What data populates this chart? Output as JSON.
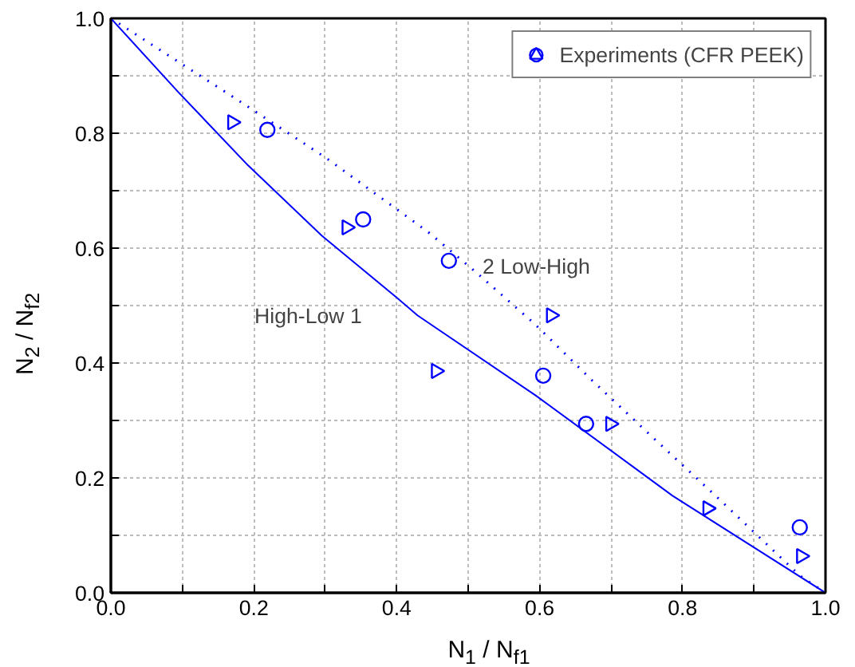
{
  "chart_data": {
    "type": "scatter",
    "xlabel": "N$_{1}$ / N$_{f1}$",
    "ylabel": "N$_{2}$ / N$_{f2}$",
    "xlim": [
      0,
      1
    ],
    "ylim": [
      0,
      1
    ],
    "xticks": [
      {
        "value": 0.0,
        "label": "0.0"
      },
      {
        "value": 0.1,
        "label": null
      },
      {
        "value": 0.2,
        "label": "0.2"
      },
      {
        "value": 0.3,
        "label": null
      },
      {
        "value": 0.4,
        "label": "0.4"
      },
      {
        "value": 0.5,
        "label": null
      },
      {
        "value": 0.6,
        "label": "0.6"
      },
      {
        "value": 0.7,
        "label": null
      },
      {
        "value": 0.8,
        "label": "0.8"
      },
      {
        "value": 0.9,
        "label": null
      },
      {
        "value": 1.0,
        "label": "1.0"
      }
    ],
    "yticks": [
      {
        "value": 0.0,
        "label": "0.0"
      },
      {
        "value": 0.1,
        "label": null
      },
      {
        "value": 0.2,
        "label": "0.2"
      },
      {
        "value": 0.3,
        "label": null
      },
      {
        "value": 0.4,
        "label": "0.4"
      },
      {
        "value": 0.5,
        "label": null
      },
      {
        "value": 0.6,
        "label": "0.6"
      },
      {
        "value": 0.7,
        "label": null
      },
      {
        "value": 0.8,
        "label": "0.8"
      },
      {
        "value": 0.9,
        "label": null
      },
      {
        "value": 1.0,
        "label": "1.0"
      }
    ],
    "grid": true,
    "legend": "top right",
    "series": [
      {
        "type": "line",
        "line_style": "solid",
        "color": "#0000ff",
        "x": [
          0,
          0.094,
          0.192,
          0.295,
          0.4,
          0.429,
          0.594,
          0.786,
          1.0
        ],
        "values": [
          1,
          0.872,
          0.744,
          0.622,
          0.514,
          0.483,
          0.344,
          0.169,
          0
        ]
      },
      {
        "type": "line",
        "line_style": "dotted",
        "color": "#0000ff",
        "x": [
          0,
          0.17,
          0.3,
          0.444,
          0.511,
          0.594,
          0.674,
          0.757,
          0.853,
          0.964,
          1.0
        ],
        "values": [
          1,
          0.864,
          0.758,
          0.628,
          0.558,
          0.467,
          0.369,
          0.272,
          0.161,
          0.03,
          0
        ]
      },
      {
        "type": "scatter",
        "name": "Experiments (CFR PEEK)",
        "marker": "circle",
        "color": "#0000ff",
        "x": [
          0.219,
          0.353,
          0.473,
          0.605,
          0.665,
          0.964
        ],
        "values": [
          0.806,
          0.65,
          0.578,
          0.378,
          0.294,
          0.114
        ]
      },
      {
        "type": "scatter",
        "marker": "triangle",
        "color": "#0000ff",
        "x": [
          0.17,
          0.33,
          0.455,
          0.616,
          0.699,
          0.835,
          0.966
        ],
        "values": [
          0.819,
          0.636,
          0.386,
          0.483,
          0.294,
          0.147,
          0.064
        ]
      }
    ],
    "annotations": [
      "High-Low 1",
      "2 Low-High"
    ]
  }
}
